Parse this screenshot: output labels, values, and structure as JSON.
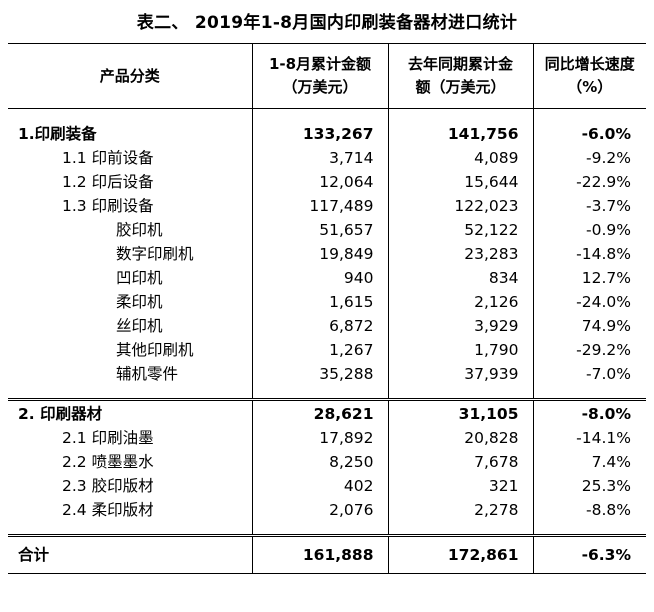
{
  "title": "表二、 2019年1-8月国内印刷装备器材进口统计",
  "headers": {
    "category": "产品分类",
    "col1_line1": "1-8月累计金额",
    "col1_line2": "（万美元）",
    "col2_line1": "去年同期累计金",
    "col2_line2": "额（万美元）",
    "col3_line1": "同比增长速度",
    "col3_line2": "（%）"
  },
  "section1": {
    "header": {
      "name": "1.印刷装备",
      "amount": "133,267",
      "last_year": "141,756",
      "growth": "-6.0%"
    },
    "rows": [
      {
        "name": "1.1 印前设备",
        "amount": "3,714",
        "last_year": "4,089",
        "growth": "-9.2%",
        "level": 1
      },
      {
        "name": "1.2 印后设备",
        "amount": "12,064",
        "last_year": "15,644",
        "growth": "-22.9%",
        "level": 1
      },
      {
        "name": "1.3 印刷设备",
        "amount": "117,489",
        "last_year": "122,023",
        "growth": "-3.7%",
        "level": 1
      },
      {
        "name": "胶印机",
        "amount": "51,657",
        "last_year": "52,122",
        "growth": "-0.9%",
        "level": 2
      },
      {
        "name": "数字印刷机",
        "amount": "19,849",
        "last_year": "23,283",
        "growth": "-14.8%",
        "level": 2
      },
      {
        "name": "凹印机",
        "amount": "940",
        "last_year": "834",
        "growth": "12.7%",
        "level": 2
      },
      {
        "name": "柔印机",
        "amount": "1,615",
        "last_year": "2,126",
        "growth": "-24.0%",
        "level": 2
      },
      {
        "name": "丝印机",
        "amount": "6,872",
        "last_year": "3,929",
        "growth": "74.9%",
        "level": 2
      },
      {
        "name": "其他印刷机",
        "amount": "1,267",
        "last_year": "1,790",
        "growth": "-29.2%",
        "level": 2
      },
      {
        "name": "辅机零件",
        "amount": "35,288",
        "last_year": "37,939",
        "growth": "-7.0%",
        "level": 2
      }
    ]
  },
  "section2": {
    "header": {
      "name": "2. 印刷器材",
      "amount": "28,621",
      "last_year": "31,105",
      "growth": "-8.0%"
    },
    "rows": [
      {
        "name": "2.1 印刷油墨",
        "amount": "17,892",
        "last_year": "20,828",
        "growth": "-14.1%",
        "level": 1
      },
      {
        "name": "2.2 喷墨墨水",
        "amount": "8,250",
        "last_year": "7,678",
        "growth": "7.4%",
        "level": 1
      },
      {
        "name": "2.3 胶印版材",
        "amount": "402",
        "last_year": "321",
        "growth": "25.3%",
        "level": 1
      },
      {
        "name": "2.4 柔印版材",
        "amount": "2,076",
        "last_year": "2,278",
        "growth": "-8.8%",
        "level": 1
      }
    ]
  },
  "total": {
    "name": "合计",
    "amount": "161,888",
    "last_year": "172,861",
    "growth": "-6.3%"
  }
}
